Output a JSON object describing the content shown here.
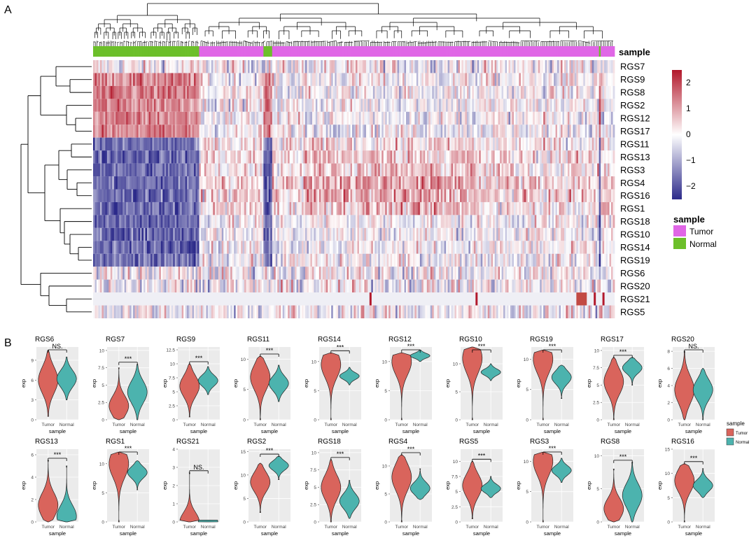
{
  "panel_labels": {
    "a": "A",
    "b": "B"
  },
  "heatmap": {
    "sample_label": "sample",
    "legend_title": "sample",
    "legend_items": [
      {
        "label": "Tumor",
        "color": "#e066e6"
      },
      {
        "label": "Normal",
        "color": "#6cbf2a"
      }
    ],
    "scale_ticks": [
      "2",
      "1",
      "0",
      "−1",
      "−2"
    ],
    "colors": {
      "high": "#b2182b",
      "mid": "#ffffff",
      "low": "#2c2a8a"
    }
  },
  "violin_colors": {
    "Tumor": "#d9645c",
    "Normal": "#4cb3ae"
  },
  "violin_legend": {
    "title": "sample",
    "items": [
      "Tumor",
      "Normal"
    ]
  },
  "violin_axis": {
    "xlabel": "sample",
    "ylabel": "exp"
  },
  "chart_data": [
    {
      "type": "heatmap",
      "rows": [
        "RGS7",
        "RGS9",
        "RGS8",
        "RGS2",
        "RGS12",
        "RGS17",
        "RGS11",
        "RGS13",
        "RGS3",
        "RGS4",
        "RGS16",
        "RGS1",
        "RGS18",
        "RGS10",
        "RGS14",
        "RGS19",
        "RGS6",
        "RGS20",
        "RGS21",
        "RGS5"
      ],
      "annotation": "sample",
      "annotation_levels": [
        "Tumor",
        "Normal"
      ],
      "color_scale": [
        -2,
        2
      ],
      "row_pattern_normal_vs_tumor": {
        "RGS7": "mixed",
        "RGS9": "higher in Normal",
        "RGS8": "higher in Normal",
        "RGS2": "higher in Normal",
        "RGS12": "higher in Normal",
        "RGS17": "higher in Normal",
        "RGS11": "lower in Normal",
        "RGS13": "lower in Normal",
        "RGS3": "lower in Normal",
        "RGS4": "lower in Normal",
        "RGS16": "lower in Normal",
        "RGS1": "lower in Normal",
        "RGS18": "lower in Normal",
        "RGS10": "lower in Normal",
        "RGS14": "lower in Normal",
        "RGS19": "lower in Normal",
        "RGS6": "mixed",
        "RGS20": "mixed",
        "RGS21": "near zero",
        "RGS5": "mixed"
      }
    },
    {
      "type": "violin",
      "title": "RGS6",
      "sig": "NS.",
      "yticks": [
        0,
        3,
        6,
        9
      ],
      "ylim": [
        0,
        11
      ],
      "groups": [
        {
          "name": "Tumor",
          "median": 6,
          "min": 0.5,
          "max": 10.5
        },
        {
          "name": "Normal",
          "median": 6.2,
          "min": 3,
          "max": 9.5
        }
      ]
    },
    {
      "type": "violin",
      "title": "RGS7",
      "sig": "***",
      "yticks": [
        0,
        2.5,
        5,
        7.5,
        10
      ],
      "ylim": [
        0,
        10.5
      ],
      "groups": [
        {
          "name": "Tumor",
          "median": 2,
          "min": 0,
          "max": 7.5
        },
        {
          "name": "Normal",
          "median": 4,
          "min": 0,
          "max": 8
        }
      ]
    },
    {
      "type": "violin",
      "title": "RGS9",
      "sig": "***",
      "yticks": [
        0,
        2.5,
        5,
        7.5,
        10,
        12.5
      ],
      "ylim": [
        0,
        13
      ],
      "groups": [
        {
          "name": "Tumor",
          "median": 6,
          "min": 0.5,
          "max": 10
        },
        {
          "name": "Normal",
          "median": 7,
          "min": 4.5,
          "max": 9.5
        }
      ]
    },
    {
      "type": "violin",
      "title": "RGS11",
      "sig": "***",
      "yticks": [
        0,
        5,
        10
      ],
      "ylim": [
        0,
        12
      ],
      "groups": [
        {
          "name": "Tumor",
          "median": 7,
          "min": 0,
          "max": 10.5
        },
        {
          "name": "Normal",
          "median": 6,
          "min": 3,
          "max": 9
        }
      ]
    },
    {
      "type": "violin",
      "title": "RGS14",
      "sig": "***",
      "yticks": [
        0,
        5,
        10
      ],
      "ylim": [
        0,
        12.5
      ],
      "groups": [
        {
          "name": "Tumor",
          "median": 9.5,
          "min": 0,
          "max": 11.5
        },
        {
          "name": "Normal",
          "median": 7.5,
          "min": 6,
          "max": 9
        }
      ]
    },
    {
      "type": "violin",
      "title": "RGS12",
      "sig": "***",
      "yticks": [
        0,
        5,
        10
      ],
      "ylim": [
        0,
        12.5
      ],
      "groups": [
        {
          "name": "Tumor",
          "median": 10,
          "min": 0,
          "max": 11.5
        },
        {
          "name": "Normal",
          "median": 11,
          "min": 10,
          "max": 12
        }
      ]
    },
    {
      "type": "violin",
      "title": "RGS10",
      "sig": "***",
      "yticks": [
        0,
        5,
        10
      ],
      "ylim": [
        0,
        13
      ],
      "groups": [
        {
          "name": "Tumor",
          "median": 11,
          "min": 0,
          "max": 13
        },
        {
          "name": "Normal",
          "median": 8.5,
          "min": 7,
          "max": 10
        }
      ]
    },
    {
      "type": "violin",
      "title": "RGS19",
      "sig": "***",
      "yticks": [
        0,
        5,
        10
      ],
      "ylim": [
        0,
        12
      ],
      "groups": [
        {
          "name": "Tumor",
          "median": 10,
          "min": 0,
          "max": 11.5
        },
        {
          "name": "Normal",
          "median": 7,
          "min": 3.5,
          "max": 9
        }
      ]
    },
    {
      "type": "violin",
      "title": "RGS17",
      "sig": "***",
      "yticks": [
        0,
        2.5,
        5,
        7.5,
        10
      ],
      "ylim": [
        0,
        10.5
      ],
      "groups": [
        {
          "name": "Tumor",
          "median": 5.5,
          "min": 0,
          "max": 9
        },
        {
          "name": "Normal",
          "median": 7.5,
          "min": 5,
          "max": 9
        }
      ]
    },
    {
      "type": "violin",
      "title": "RGS20",
      "sig": "NS.",
      "yticks": [
        0,
        2,
        4,
        6,
        8
      ],
      "ylim": [
        0,
        8.5
      ],
      "groups": [
        {
          "name": "Tumor",
          "median": 3.5,
          "min": 0,
          "max": 8
        },
        {
          "name": "Normal",
          "median": 3.5,
          "min": 0,
          "max": 6
        }
      ]
    },
    {
      "type": "violin",
      "title": "RGS13",
      "sig": "***",
      "yticks": [
        0,
        2,
        4,
        6
      ],
      "ylim": [
        0,
        6.5
      ],
      "groups": [
        {
          "name": "Tumor",
          "median": 1.5,
          "min": 0,
          "max": 5.5
        },
        {
          "name": "Normal",
          "median": 0.5,
          "min": 0,
          "max": 5
        }
      ]
    },
    {
      "type": "violin",
      "title": "RGS1",
      "sig": "***",
      "yticks": [
        0,
        5,
        10
      ],
      "ylim": [
        0,
        12.5
      ],
      "groups": [
        {
          "name": "Tumor",
          "median": 10,
          "min": 0,
          "max": 12
        },
        {
          "name": "Normal",
          "median": 8.5,
          "min": 5.5,
          "max": 10.5
        }
      ]
    },
    {
      "type": "violin",
      "title": "RGS21",
      "sig": "NS.",
      "yticks": [
        0,
        1,
        2,
        3,
        4
      ],
      "ylim": [
        0,
        4
      ],
      "groups": [
        {
          "name": "Tumor",
          "median": 0,
          "min": 0,
          "max": 2.7
        },
        {
          "name": "Normal",
          "median": 0,
          "min": 0,
          "max": 0.1
        }
      ]
    },
    {
      "type": "violin",
      "title": "RGS2",
      "sig": "***",
      "yticks": [
        0,
        5,
        10,
        15
      ],
      "ylim": [
        0,
        15.5
      ],
      "groups": [
        {
          "name": "Tumor",
          "median": 8.5,
          "min": 2,
          "max": 12.5
        },
        {
          "name": "Normal",
          "median": 12,
          "min": 9,
          "max": 14
        }
      ]
    },
    {
      "type": "violin",
      "title": "RGS18",
      "sig": "***",
      "yticks": [
        0,
        2.5,
        5,
        7.5,
        10
      ],
      "ylim": [
        0,
        10.5
      ],
      "groups": [
        {
          "name": "Tumor",
          "median": 5,
          "min": 0,
          "max": 9
        },
        {
          "name": "Normal",
          "median": 3,
          "min": 0.5,
          "max": 6
        }
      ]
    },
    {
      "type": "violin",
      "title": "RGS4",
      "sig": "***",
      "yticks": [
        0,
        5,
        10
      ],
      "ylim": [
        0,
        13
      ],
      "groups": [
        {
          "name": "Tumor",
          "median": 8,
          "min": 0,
          "max": 12
        },
        {
          "name": "Normal",
          "median": 6,
          "min": 4,
          "max": 9.5
        }
      ]
    },
    {
      "type": "violin",
      "title": "RGS5",
      "sig": "***",
      "yticks": [
        0,
        2.5,
        5,
        7.5,
        10,
        12.5
      ],
      "ylim": [
        0,
        12
      ],
      "groups": [
        {
          "name": "Tumor",
          "median": 6,
          "min": 0.5,
          "max": 10
        },
        {
          "name": "Normal",
          "median": 5.5,
          "min": 4,
          "max": 7.5
        }
      ]
    },
    {
      "type": "violin",
      "title": "RGS3",
      "sig": "***",
      "yticks": [
        0,
        5,
        10
      ],
      "ylim": [
        0,
        12
      ],
      "groups": [
        {
          "name": "Tumor",
          "median": 10,
          "min": 0,
          "max": 11.5
        },
        {
          "name": "Normal",
          "median": 8.5,
          "min": 6.5,
          "max": 10.5
        }
      ]
    },
    {
      "type": "violin",
      "title": "RGS8",
      "sig": "***",
      "yticks": [
        0,
        5,
        10
      ],
      "ylim": [
        0,
        11
      ],
      "groups": [
        {
          "name": "Tumor",
          "median": 2,
          "min": 0,
          "max": 8
        },
        {
          "name": "Normal",
          "median": 4,
          "min": 0,
          "max": 9
        }
      ]
    },
    {
      "type": "violin",
      "title": "RGS16",
      "sig": "***",
      "yticks": [
        0,
        5,
        10,
        15
      ],
      "ylim": [
        0,
        15
      ],
      "groups": [
        {
          "name": "Tumor",
          "median": 8.5,
          "min": 0,
          "max": 12
        },
        {
          "name": "Normal",
          "median": 7.5,
          "min": 5,
          "max": 11
        }
      ]
    }
  ]
}
